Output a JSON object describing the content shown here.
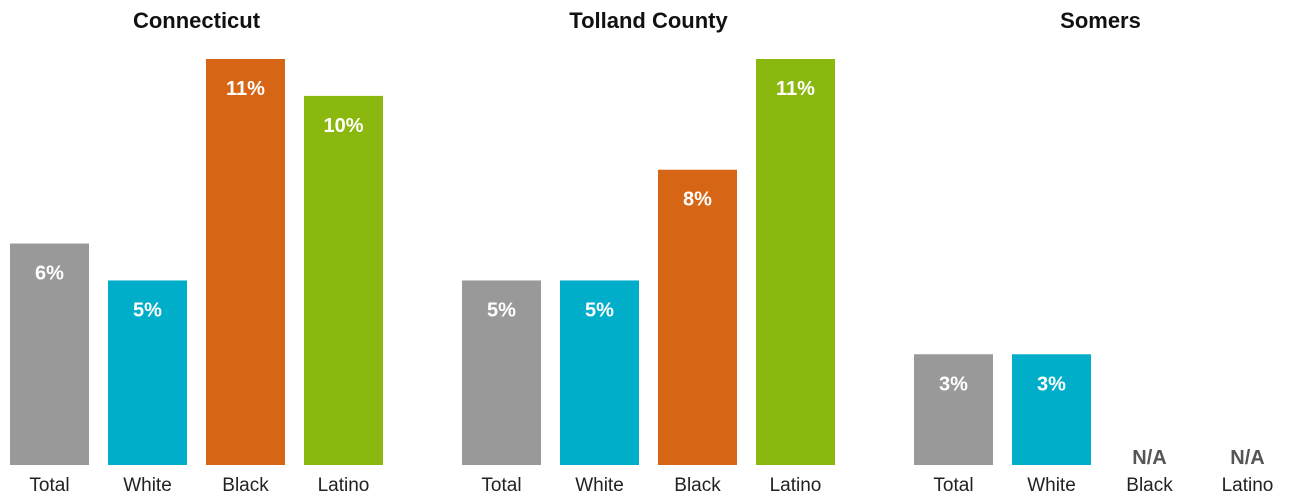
{
  "colors": {
    "Total": "#999999",
    "White": "#00aec9",
    "Black": "#d66516",
    "Latino": "#8bb80f"
  },
  "chart_data": [
    {
      "type": "bar",
      "title": "Connecticut",
      "categories": [
        "Total",
        "White",
        "Black",
        "Latino"
      ],
      "values": [
        6,
        5,
        11,
        10
      ],
      "labels": [
        "6%",
        "5%",
        "11%",
        "10%"
      ],
      "ylim": [
        0,
        11
      ]
    },
    {
      "type": "bar",
      "title": "Tolland County",
      "categories": [
        "Total",
        "White",
        "Black",
        "Latino"
      ],
      "values": [
        5,
        5,
        8,
        11
      ],
      "labels": [
        "5%",
        "5%",
        "8%",
        "11%"
      ],
      "ylim": [
        0,
        11
      ]
    },
    {
      "type": "bar",
      "title": "Somers",
      "categories": [
        "Total",
        "White",
        "Black",
        "Latino"
      ],
      "values": [
        3,
        3,
        null,
        null
      ],
      "labels": [
        "3%",
        "3%",
        "N/A",
        "N/A"
      ],
      "ylim": [
        0,
        11
      ]
    }
  ]
}
